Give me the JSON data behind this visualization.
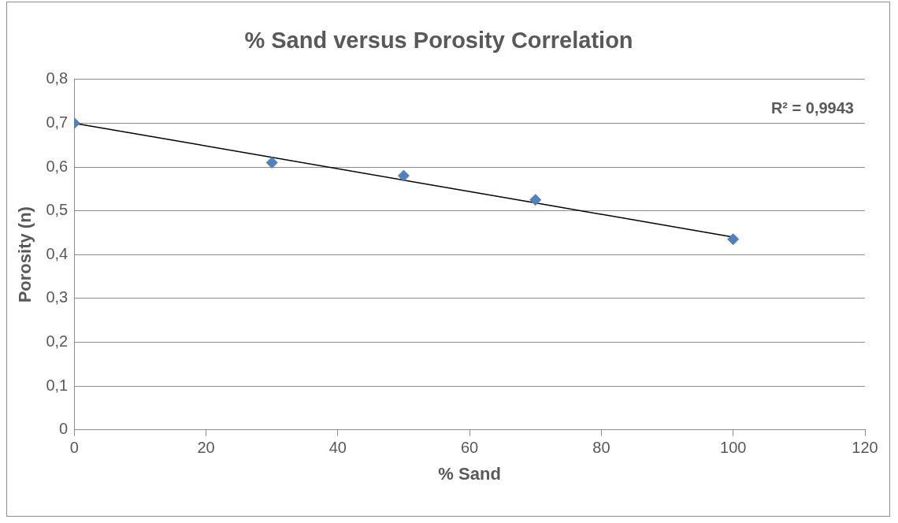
{
  "chart_data": {
    "type": "scatter",
    "title": "% Sand versus Porosity Correlation",
    "xlabel": "% Sand",
    "ylabel": "Porosity (n)",
    "series": [
      {
        "color": "#4f81bd",
        "x": [
          0,
          30,
          50,
          70,
          100
        ],
        "values": [
          0.7,
          0.61,
          0.58,
          0.525,
          0.435
        ],
        "marker": "diamond"
      },
      {
        "type": "line",
        "color": "#000000",
        "x": [
          0,
          100
        ],
        "values": [
          0.7,
          0.44
        ],
        "marker": "none",
        "line_style": "solid"
      }
    ],
    "xlim": [
      0,
      120
    ],
    "xticks": [
      0,
      20,
      40,
      60,
      80,
      100,
      120
    ],
    "ylim": [
      0,
      0.8
    ],
    "yticks": [
      0,
      {
        "value": 0.1,
        "label": "0,1"
      },
      {
        "value": 0.2,
        "label": "0,2"
      },
      {
        "value": 0.3,
        "label": "0,3"
      },
      {
        "value": 0.4,
        "label": "0,4"
      },
      {
        "value": 0.5,
        "label": "0,5"
      },
      {
        "value": 0.6,
        "label": "0,6"
      },
      {
        "value": 0.7,
        "label": "0,7"
      },
      {
        "value": 0.8,
        "label": "0,8"
      }
    ],
    "grid": "y",
    "legend": false,
    "annotations": [
      "R² = 0,9943"
    ]
  }
}
